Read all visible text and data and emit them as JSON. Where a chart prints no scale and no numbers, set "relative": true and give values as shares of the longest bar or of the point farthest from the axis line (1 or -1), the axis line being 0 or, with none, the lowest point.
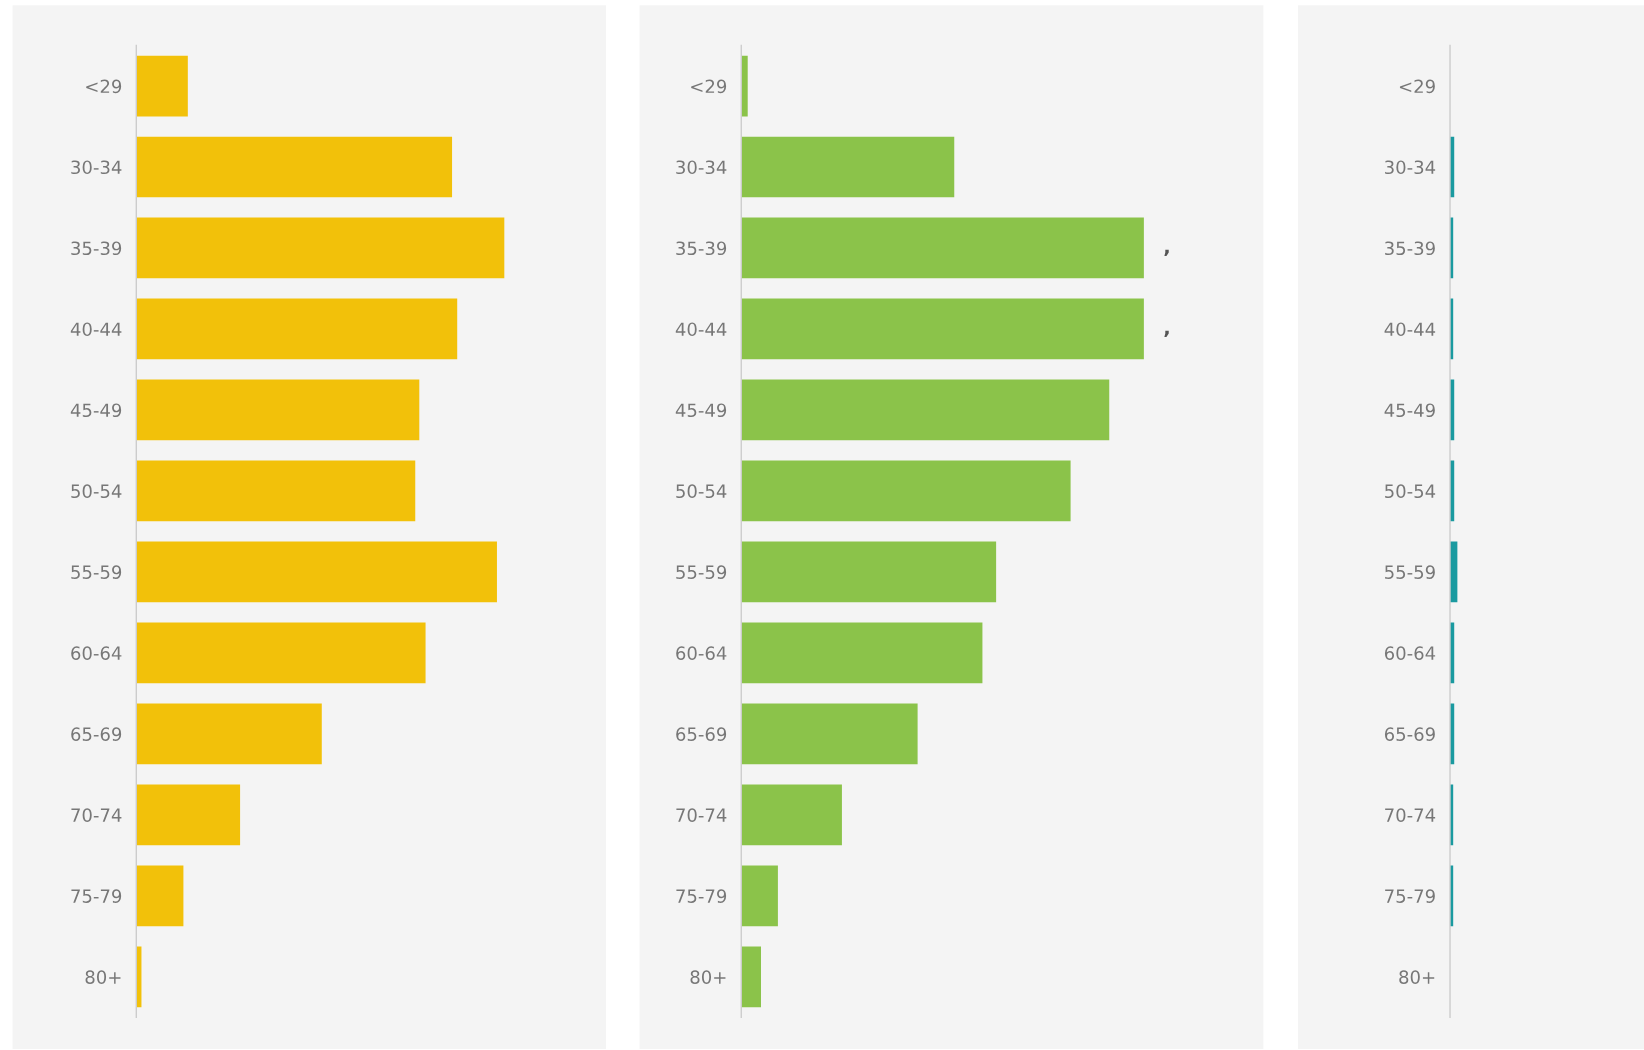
{
  "chart_data": [
    {
      "type": "bar",
      "orientation": "horizontal",
      "relative": true,
      "grid": false,
      "legend": false,
      "categories": [
        "<29",
        "30-34",
        "35-39",
        "40-44",
        "45-49",
        "50-54",
        "55-59",
        "60-64",
        "65-69",
        "70-74",
        "75-79",
        "80+"
      ],
      "series": [
        {
          "color": "#f2c10a",
          "values": [
            0.14,
            0.858,
            1,
            0.872,
            0.769,
            0.758,
            0.98,
            0.786,
            0.504,
            0.282,
            0.128,
            0.014
          ]
        }
      ]
    },
    {
      "type": "bar",
      "orientation": "horizontal",
      "relative": true,
      "grid": false,
      "legend": false,
      "categories": [
        "<29",
        "30-34",
        "35-39",
        "40-44",
        "45-49",
        "50-54",
        "55-59",
        "60-64",
        "65-69",
        "70-74",
        "75-79",
        "80+"
      ],
      "annotations": [
        {
          "text": ",",
          "x": 1,
          "y": "35-39"
        },
        {
          "text": ",",
          "x": 1,
          "y": "40-44"
        }
      ],
      "series": [
        {
          "color": "#8bc34a",
          "values": [
            0.016,
            0.529,
            1,
            1,
            0.914,
            0.818,
            0.633,
            0.599,
            0.438,
            0.25,
            0.091,
            0.049
          ]
        }
      ]
    },
    {
      "type": "bar",
      "orientation": "horizontal",
      "relative": true,
      "grid": false,
      "legend": false,
      "categories": [
        "<29",
        "30-34",
        "35-39",
        "40-44",
        "45-49",
        "50-54",
        "55-59",
        "60-64",
        "65-69",
        "70-74",
        "75-79",
        "80+"
      ],
      "series": [
        {
          "color": "#1a9aa0",
          "values": [
            0,
            0.57,
            0.43,
            0.43,
            0.57,
            0.57,
            1,
            0.57,
            0.57,
            0.43,
            0.43,
            0
          ]
        }
      ]
    }
  ]
}
